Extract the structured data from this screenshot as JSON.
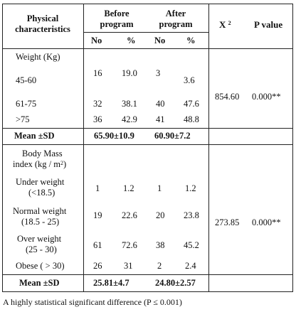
{
  "table": {
    "headers": {
      "physical": "Physical characteristics",
      "before": "Before program",
      "after": "After program",
      "chi_base": "X",
      "chi_sup": "2",
      "pvalue": "P value",
      "no": "No",
      "pct": "%"
    },
    "weight": {
      "label": "Weight (Kg)",
      "rows": [
        {
          "label": "45-60",
          "bno": "16",
          "bpct": "19.0",
          "ano": "3",
          "apct": "3.6"
        },
        {
          "label": "61-75",
          "bno": "32",
          "bpct": "38.1",
          "ano": "40",
          "apct": "47.6"
        },
        {
          "label": ">75",
          "bno": "36",
          "bpct": "42.9",
          "ano": "41",
          "apct": "48.8"
        }
      ],
      "chi": "854.60",
      "p": "0.000**",
      "mean_label": "Mean ±SD",
      "mean_before": "65.90±10.9",
      "mean_after": "60.90±7.2"
    },
    "bmi": {
      "label_line1": "Body Mass",
      "label_line2": "index (kg / m",
      "label_sup": "2",
      "label_end": ")",
      "rows": [
        {
          "line1": "Under weight",
          "line2": "(<18.5)",
          "bno": "1",
          "bpct": "1.2",
          "ano": "1",
          "apct": "1.2"
        },
        {
          "line1": "Normal weight",
          "line2": "(18.5 - 25)",
          "bno": "19",
          "bpct": "22.6",
          "ano": "20",
          "apct": "23.8"
        },
        {
          "line1": "Over weight",
          "line2": "(25 - 30)",
          "bno": "61",
          "bpct": "72.6",
          "ano": "38",
          "apct": "45.2"
        },
        {
          "line1": "Obese ( > 30)",
          "line2": "",
          "bno": "26",
          "bpct": "31",
          "ano": "2",
          "apct": "2.4"
        }
      ],
      "chi": "273.85",
      "p": "0.000**",
      "mean_label": "Mean ±SD",
      "mean_before": "25.81±4.7",
      "mean_after": "24.80±2.57"
    }
  },
  "footnote": "A highly statistical significant difference (P ≤ 0.001)"
}
